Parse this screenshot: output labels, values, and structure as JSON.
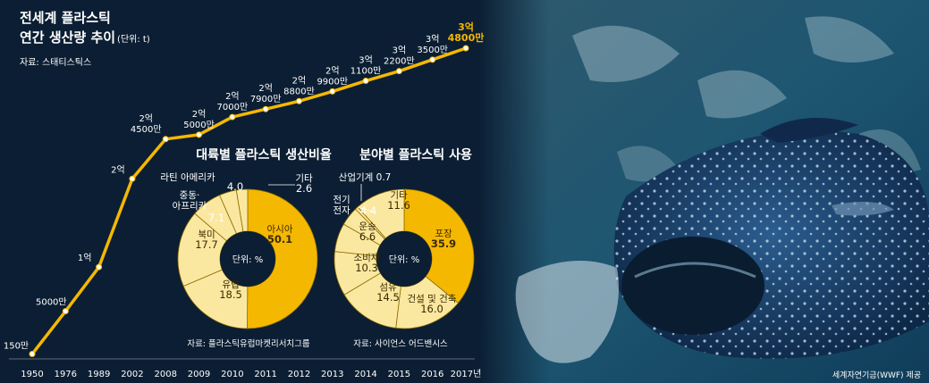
{
  "title_line1": "전세계 플라스틱",
  "title_line2_main": "연간 생산량 추이",
  "title_line2_unit": "(단위: t)",
  "source_line": "자료: 스태티스틱스",
  "photo_credit": "세계자연기금(WWF) 제공",
  "colors": {
    "accent": "#f5b800",
    "background": "#0b1e33",
    "text": "#ffffff"
  },
  "chart_data": [
    {
      "type": "line",
      "title": "전세계 플라스틱 연간 생산량 추이",
      "unit": "t",
      "categories": [
        "1950",
        "1976",
        "1989",
        "2002",
        "2008",
        "2009",
        "2010",
        "2011",
        "2012",
        "2013",
        "2014",
        "2015",
        "2016",
        "2017년"
      ],
      "values": [
        1500000,
        50000000,
        100000000,
        200000000,
        245000000,
        250000000,
        270000000,
        279000000,
        288000000,
        299000000,
        311000000,
        322000000,
        335000000,
        348000000
      ],
      "value_labels": [
        "150만",
        "5000만",
        "1억",
        "2억",
        "2억\n4500만",
        "2억\n5000만",
        "2억\n7000만",
        "2억\n7900만",
        "2억\n8800만",
        "2억\n9900만",
        "3억\n1100만",
        "3억\n2200만",
        "3억\n3500만",
        "3억\n4800만"
      ],
      "ylim": [
        0,
        350000000
      ]
    },
    {
      "type": "pie",
      "title": "대륙별 플라스틱 생산비율",
      "center_label": "단위: %",
      "slices": [
        {
          "label": "아시아",
          "value": 50.1,
          "value_text": "50.1"
        },
        {
          "label": "유럽",
          "value": 18.5,
          "value_text": "18.5"
        },
        {
          "label": "북미",
          "value": 17.7,
          "value_text": "17.7"
        },
        {
          "label": "중동·\n아프리카",
          "value": 7.1,
          "value_text": "7.1"
        },
        {
          "label": "라틴 아메리카",
          "value": 4.0,
          "value_text": "4.0"
        },
        {
          "label": "기타",
          "value": 2.6,
          "value_text": "2.6"
        }
      ],
      "source": "자료: 플라스틱유럽마켓리서치그룹"
    },
    {
      "type": "pie",
      "title": "분야별 플라스틱 사용",
      "center_label": "단위: %",
      "slices": [
        {
          "label": "포장",
          "value": 35.9,
          "value_text": "35.9"
        },
        {
          "label": "건설 및 건축",
          "value": 16.0,
          "value_text": "16.0"
        },
        {
          "label": "섬유",
          "value": 14.5,
          "value_text": "14.5"
        },
        {
          "label": "소비재",
          "value": 10.3,
          "value_text": "10.3"
        },
        {
          "label": "운송",
          "value": 6.6,
          "value_text": "6.6"
        },
        {
          "label": "전기\n전자",
          "value": 4.4,
          "value_text": "4.4"
        },
        {
          "label": "산업기계",
          "value": 0.7,
          "value_text": "0.7"
        },
        {
          "label": "기타",
          "value": 11.6,
          "value_text": "11.6"
        }
      ],
      "source": "자료: 사이언스 어드밴시스"
    }
  ]
}
